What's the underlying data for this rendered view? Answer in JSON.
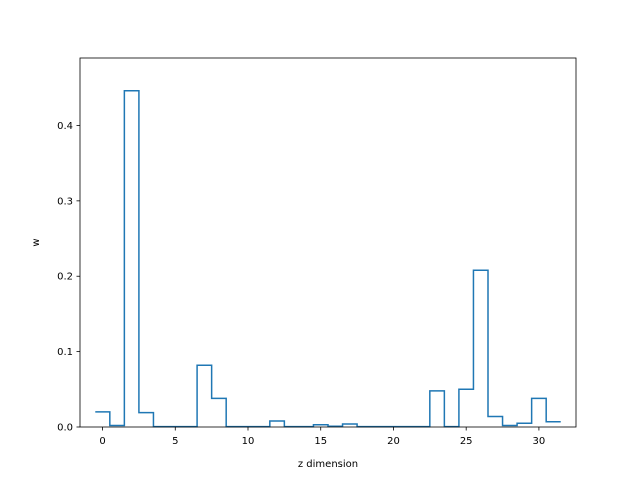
{
  "chart_data": {
    "type": "step",
    "title": "",
    "xlabel": "z dimension",
    "ylabel": "w",
    "xlim": [
      -1.55,
      32.55
    ],
    "ylim": [
      0,
      0.4895
    ],
    "xticks": [
      0,
      5,
      10,
      15,
      20,
      25,
      30
    ],
    "xtick_labels": [
      "0",
      "5",
      "10",
      "15",
      "20",
      "25",
      "30"
    ],
    "yticks": [
      0.0,
      0.1,
      0.2,
      0.3,
      0.4
    ],
    "ytick_labels": [
      "0.0",
      "0.1",
      "0.2",
      "0.3",
      "0.4"
    ],
    "grid": false,
    "line_color": "#1f77b4",
    "series": [
      {
        "x": [
          0,
          1,
          2,
          3,
          4,
          5,
          6,
          7,
          8,
          9,
          10,
          11,
          12,
          13,
          14,
          15,
          16,
          17,
          18,
          19,
          20,
          21,
          22,
          23,
          24,
          25,
          26,
          27,
          28,
          29,
          30,
          31
        ],
        "values": [
          0.02,
          0.002,
          0.446,
          0.019,
          0.0005,
          0.0005,
          0.0005,
          0.082,
          0.038,
          0.0005,
          0.0005,
          0.0005,
          0.008,
          0.0005,
          0.0005,
          0.003,
          0.001,
          0.004,
          0.0005,
          0.0005,
          0.0005,
          0.0005,
          0.0005,
          0.048,
          0.0005,
          0.05,
          0.208,
          0.014,
          0.002,
          0.005,
          0.038,
          0.007
        ]
      }
    ]
  }
}
